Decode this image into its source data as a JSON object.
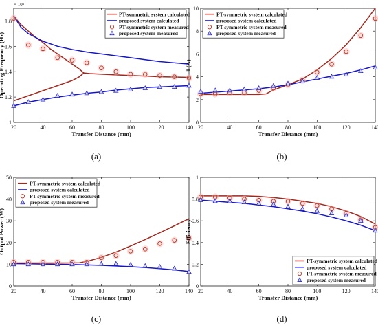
{
  "figure": {
    "panels": [
      {
        "label": "(a)"
      },
      {
        "label": "(b)"
      },
      {
        "label": "(c)"
      },
      {
        "label": "(d)"
      }
    ]
  },
  "colors": {
    "pt_line": "#a0281e",
    "prop_line": "#1515c8",
    "pt_marker": "#b8321e",
    "prop_marker": "#2828c8",
    "marker_halo": "#f4b8b8"
  },
  "chart_data": [
    {
      "id": "a",
      "type": "line",
      "title": "",
      "xlabel": "Transfer Distance (mm)",
      "ylabel": "Operating Frequency (Hz)",
      "y_multiplier_label": "× 10⁵",
      "xlim": [
        20,
        140
      ],
      "ylim": [
        1.0,
        1.9
      ],
      "xticks": [
        20,
        40,
        60,
        80,
        100,
        120,
        140
      ],
      "yticks": [
        1,
        1.2,
        1.4,
        1.6,
        1.8
      ],
      "ytick_labels": [
        "1",
        "1.2",
        "1.4",
        "1.6",
        "1.8"
      ],
      "legend_position": "top-right",
      "series": [
        {
          "name": "PT-symmetric system calculated",
          "kind": "line",
          "color_key": "pt_line",
          "x": [
            20,
            25,
            30,
            35,
            40,
            45,
            50,
            55,
            60,
            65,
            68,
            72,
            80,
            90,
            100,
            110,
            120,
            130,
            140
          ],
          "y": [
            1.84,
            1.77,
            1.72,
            1.67,
            1.63,
            1.58,
            1.54,
            1.5,
            1.46,
            1.42,
            1.39,
            1.385,
            1.38,
            1.375,
            1.37,
            1.365,
            1.36,
            1.358,
            1.355
          ]
        },
        {
          "name": "PT-symmetric system calculated",
          "kind": "line",
          "color_key": "pt_line",
          "hide_legend": true,
          "x": [
            20,
            25,
            30,
            35,
            40,
            45,
            50,
            55,
            60,
            65,
            68
          ],
          "y": [
            1.17,
            1.19,
            1.21,
            1.23,
            1.25,
            1.27,
            1.29,
            1.31,
            1.33,
            1.36,
            1.39
          ]
        },
        {
          "name": "proposed system calculated",
          "kind": "line",
          "color_key": "prop_line",
          "x": [
            20,
            25,
            30,
            40,
            50,
            60,
            70,
            80,
            90,
            100,
            110,
            120,
            130,
            140
          ],
          "y": [
            1.84,
            1.75,
            1.7,
            1.64,
            1.6,
            1.575,
            1.555,
            1.54,
            1.525,
            1.51,
            1.495,
            1.48,
            1.47,
            1.46
          ]
        },
        {
          "name": "proposed system calculated",
          "kind": "line",
          "color_key": "prop_line",
          "hide_legend": true,
          "x": [
            20,
            30,
            40,
            50,
            60,
            70,
            80,
            90,
            100,
            110,
            120,
            130,
            140
          ],
          "y": [
            1.13,
            1.16,
            1.18,
            1.2,
            1.215,
            1.23,
            1.24,
            1.255,
            1.265,
            1.275,
            1.28,
            1.285,
            1.29
          ]
        },
        {
          "name": "PT-symmetric system measured",
          "kind": "circle",
          "color_key": "pt_marker",
          "x": [
            20,
            30,
            40,
            50,
            60,
            70,
            80,
            90,
            100,
            110,
            120,
            130,
            140
          ],
          "y": [
            1.82,
            1.61,
            1.58,
            1.51,
            1.49,
            1.47,
            1.43,
            1.4,
            1.38,
            1.38,
            1.37,
            1.36,
            1.35
          ]
        },
        {
          "name": "proposed system measured",
          "kind": "triangle",
          "color_key": "prop_marker",
          "x": [
            20,
            30,
            40,
            50,
            60,
            70,
            80,
            90,
            100,
            110,
            120,
            130,
            140
          ],
          "y": [
            1.13,
            1.16,
            1.18,
            1.21,
            1.22,
            1.23,
            1.24,
            1.25,
            1.26,
            1.27,
            1.28,
            1.28,
            1.29
          ]
        }
      ]
    },
    {
      "id": "b",
      "type": "line",
      "title": "",
      "xlabel": "Transfer Distance (mm)",
      "ylabel": "I (A)",
      "xlim": [
        20,
        140
      ],
      "ylim": [
        0,
        10
      ],
      "xticks": [
        20,
        40,
        60,
        80,
        100,
        120,
        140
      ],
      "yticks": [
        0,
        2,
        4,
        6,
        8,
        10
      ],
      "ytick_labels": [
        "0",
        "2",
        "4",
        "6",
        "8",
        "10"
      ],
      "legend_position": "top-left",
      "series": [
        {
          "name": "PT-symmetric system calculated",
          "kind": "line",
          "color_key": "pt_line",
          "x": [
            20,
            30,
            40,
            50,
            60,
            65,
            70,
            80,
            90,
            100,
            110,
            120,
            130,
            140
          ],
          "y": [
            2.45,
            2.45,
            2.45,
            2.45,
            2.45,
            2.5,
            2.85,
            3.3,
            3.8,
            4.6,
            5.6,
            6.8,
            8.3,
            10.0
          ]
        },
        {
          "name": "proposed system calculated",
          "kind": "line",
          "color_key": "prop_line",
          "x": [
            20,
            30,
            40,
            50,
            60,
            70,
            80,
            90,
            100,
            110,
            120,
            130,
            140
          ],
          "y": [
            2.55,
            2.65,
            2.75,
            2.85,
            2.95,
            3.1,
            3.3,
            3.55,
            3.8,
            4.05,
            4.3,
            4.6,
            4.95
          ]
        },
        {
          "name": "PT-symmetric system measured",
          "kind": "circle",
          "color_key": "pt_marker",
          "x": [
            20,
            30,
            40,
            50,
            60,
            70,
            80,
            90,
            100,
            110,
            120,
            130,
            140
          ],
          "y": [
            2.5,
            2.5,
            2.6,
            2.6,
            2.8,
            3.0,
            3.3,
            3.7,
            4.4,
            5.1,
            6.2,
            7.6,
            9.1
          ]
        },
        {
          "name": "proposed system measured",
          "kind": "triangle",
          "color_key": "prop_marker",
          "x": [
            20,
            30,
            40,
            50,
            60,
            70,
            80,
            90,
            100,
            110,
            120,
            130,
            140
          ],
          "y": [
            2.7,
            2.8,
            2.8,
            2.9,
            3.0,
            3.2,
            3.4,
            3.6,
            3.9,
            4.0,
            4.2,
            4.5,
            4.8
          ]
        }
      ]
    },
    {
      "id": "c",
      "type": "line",
      "title": "",
      "xlabel": "Transfer Distance (mm)",
      "ylabel": "Output Power (W)",
      "xlim": [
        20,
        140
      ],
      "ylim": [
        0,
        50
      ],
      "xticks": [
        20,
        40,
        60,
        80,
        100,
        120,
        140
      ],
      "yticks": [
        0,
        10,
        20,
        30,
        40,
        50
      ],
      "ytick_labels": [
        "0",
        "10",
        "20",
        "30",
        "40",
        "50"
      ],
      "legend_position": "top-left",
      "series": [
        {
          "name": "PT-symmetric system calculated",
          "kind": "line",
          "color_key": "pt_line",
          "x": [
            20,
            30,
            40,
            50,
            60,
            65,
            70,
            80,
            90,
            100,
            110,
            120,
            130,
            140
          ],
          "y": [
            10.6,
            10.6,
            10.6,
            10.6,
            10.6,
            10.7,
            11.3,
            13.2,
            15.6,
            18.4,
            21.4,
            24.5,
            27.7,
            31.0
          ]
        },
        {
          "name": "proposed system calculated",
          "kind": "line",
          "color_key": "prop_line",
          "x": [
            20,
            30,
            40,
            50,
            60,
            70,
            80,
            90,
            100,
            110,
            120,
            130,
            140
          ],
          "y": [
            10.3,
            10.2,
            10.1,
            10.0,
            9.9,
            9.7,
            9.5,
            9.2,
            8.9,
            8.5,
            8.0,
            7.4,
            6.7
          ]
        },
        {
          "name": "PT-symmetric system measured",
          "kind": "circle",
          "color_key": "pt_marker",
          "x": [
            20,
            30,
            40,
            50,
            60,
            70,
            80,
            90,
            100,
            110,
            120,
            130,
            140
          ],
          "y": [
            11.0,
            11.0,
            11.0,
            11.0,
            11.0,
            11.0,
            13.0,
            14.0,
            16.0,
            17.0,
            19.5,
            21.0,
            22.0
          ]
        },
        {
          "name": "proposed system measured",
          "kind": "triangle",
          "color_key": "prop_marker",
          "x": [
            20,
            30,
            40,
            50,
            60,
            70,
            80,
            90,
            100,
            110,
            120,
            130,
            140
          ],
          "y": [
            10.0,
            10.0,
            10.0,
            10.0,
            10.0,
            10.0,
            10.2,
            10.2,
            9.8,
            9.2,
            8.8,
            8.0,
            6.5
          ]
        }
      ]
    },
    {
      "id": "d",
      "type": "line",
      "title": "",
      "xlabel": "Transfer Distance (mm)",
      "ylabel": "Efficiency",
      "xlim": [
        20,
        140
      ],
      "ylim": [
        0,
        1
      ],
      "xticks": [
        20,
        40,
        60,
        80,
        100,
        120,
        140
      ],
      "yticks": [
        0,
        0.2,
        0.4,
        0.6,
        0.8,
        1
      ],
      "ytick_labels": [
        "0",
        "0.2",
        "0.4",
        "0.6",
        "0.8",
        "1"
      ],
      "legend_position": "bottom-right",
      "series": [
        {
          "name": "PT-symmetric system calculated",
          "kind": "line",
          "color_key": "pt_line",
          "x": [
            20,
            30,
            40,
            50,
            60,
            70,
            80,
            90,
            100,
            110,
            120,
            130,
            140
          ],
          "y": [
            0.83,
            0.83,
            0.83,
            0.83,
            0.825,
            0.815,
            0.8,
            0.78,
            0.76,
            0.73,
            0.69,
            0.64,
            0.57
          ]
        },
        {
          "name": "proposed system calculated",
          "kind": "line",
          "color_key": "prop_line",
          "x": [
            20,
            30,
            40,
            50,
            60,
            70,
            80,
            90,
            100,
            110,
            120,
            130,
            140
          ],
          "y": [
            0.79,
            0.78,
            0.77,
            0.76,
            0.745,
            0.73,
            0.71,
            0.69,
            0.665,
            0.635,
            0.6,
            0.56,
            0.51
          ]
        },
        {
          "name": "PT-symmetric system measured",
          "kind": "circle",
          "color_key": "pt_marker",
          "x": [
            20,
            30,
            40,
            50,
            60,
            70,
            80,
            90,
            100,
            110,
            120,
            130,
            140
          ],
          "y": [
            0.82,
            0.82,
            0.81,
            0.8,
            0.79,
            0.78,
            0.78,
            0.76,
            0.74,
            0.71,
            0.67,
            0.61,
            0.54
          ]
        },
        {
          "name": "proposed system measured",
          "kind": "triangle",
          "color_key": "prop_marker",
          "x": [
            20,
            30,
            40,
            50,
            60,
            70,
            80,
            90,
            100,
            110,
            120,
            130,
            140
          ],
          "y": [
            0.79,
            0.78,
            0.78,
            0.77,
            0.76,
            0.75,
            0.73,
            0.71,
            0.69,
            0.67,
            0.65,
            0.6,
            0.51
          ]
        }
      ]
    }
  ]
}
